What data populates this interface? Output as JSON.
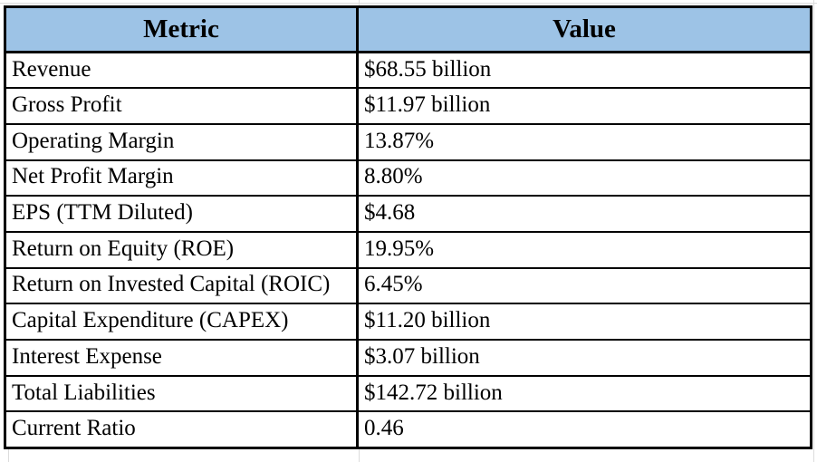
{
  "table": {
    "columns": [
      {
        "label": "Metric"
      },
      {
        "label": "Value"
      }
    ],
    "rows": [
      {
        "metric": "Revenue",
        "value": "$68.55 billion"
      },
      {
        "metric": "Gross Profit",
        "value": "$11.97 billion"
      },
      {
        "metric": "Operating Margin",
        "value": "13.87%"
      },
      {
        "metric": "Net Profit Margin",
        "value": "8.80%"
      },
      {
        "metric": "EPS (TTM Diluted)",
        "value": "$4.68"
      },
      {
        "metric": "Return on Equity (ROE)",
        "value": "19.95%"
      },
      {
        "metric": "Return on Invested Capital (ROIC)",
        "value": "6.45%"
      },
      {
        "metric": "Capital Expenditure (CAPEX)",
        "value": "$11.20 billion"
      },
      {
        "metric": "Interest Expense",
        "value": "$3.07 billion"
      },
      {
        "metric": "Total Liabilities",
        "value": "$142.72 billion"
      },
      {
        "metric": "Current Ratio",
        "value": "0.46"
      }
    ]
  },
  "colors": {
    "header_bg": "#9DC3E6",
    "border": "#000000",
    "gridline": "#DCDCDC",
    "text": "#000000"
  }
}
